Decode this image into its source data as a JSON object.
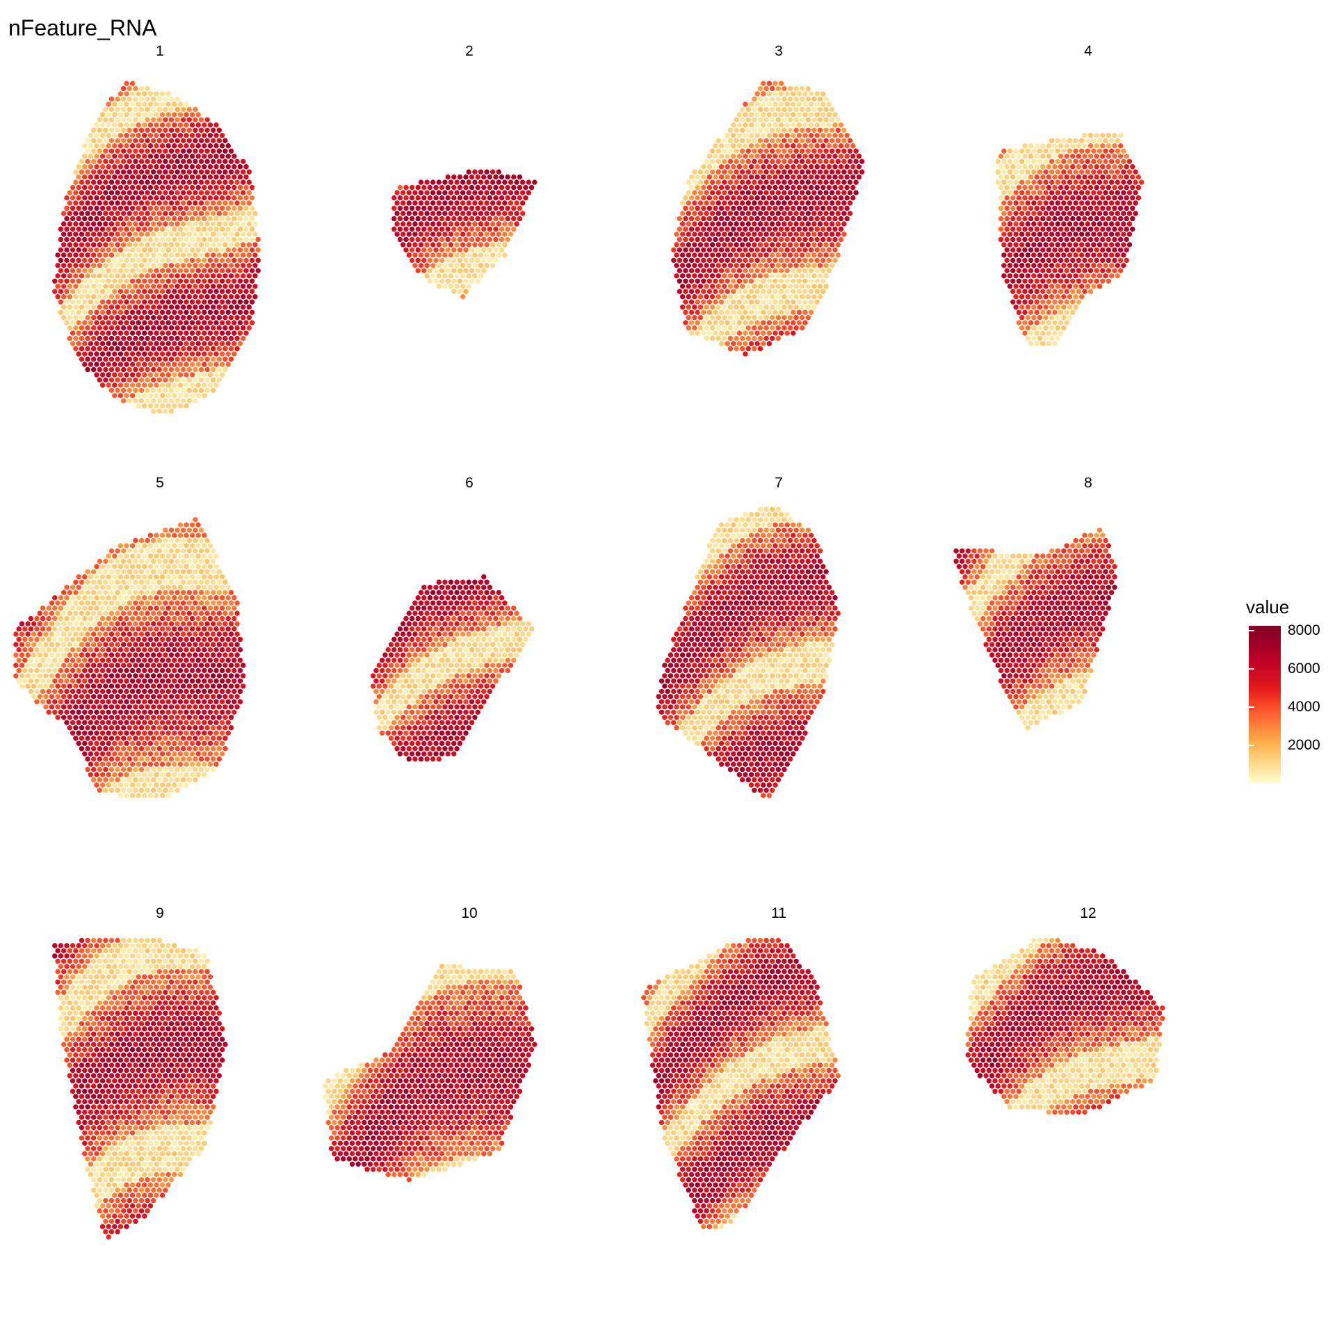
{
  "title": "nFeature_RNA",
  "chart_data": {
    "type": "scatter",
    "subtype": "spatial spot plot faceted by sample",
    "title": "nFeature_RNA",
    "facets": [
      "1",
      "2",
      "3",
      "4",
      "5",
      "6",
      "7",
      "8",
      "9",
      "10",
      "11",
      "12"
    ],
    "layout": {
      "rows": 3,
      "cols": 4
    },
    "grid": false,
    "legend": {
      "title": "value",
      "position": "right",
      "ticks": [
        2000,
        4000,
        6000,
        8000
      ],
      "tick_labels": [
        "2000",
        "4000",
        "6000",
        "8000"
      ],
      "range": [
        0,
        8200
      ],
      "colors": [
        "#FFFFCC",
        "#FEB24C",
        "#FC4E2A",
        "#E31A1C",
        "#BD0026",
        "#800026"
      ]
    }
  }
}
